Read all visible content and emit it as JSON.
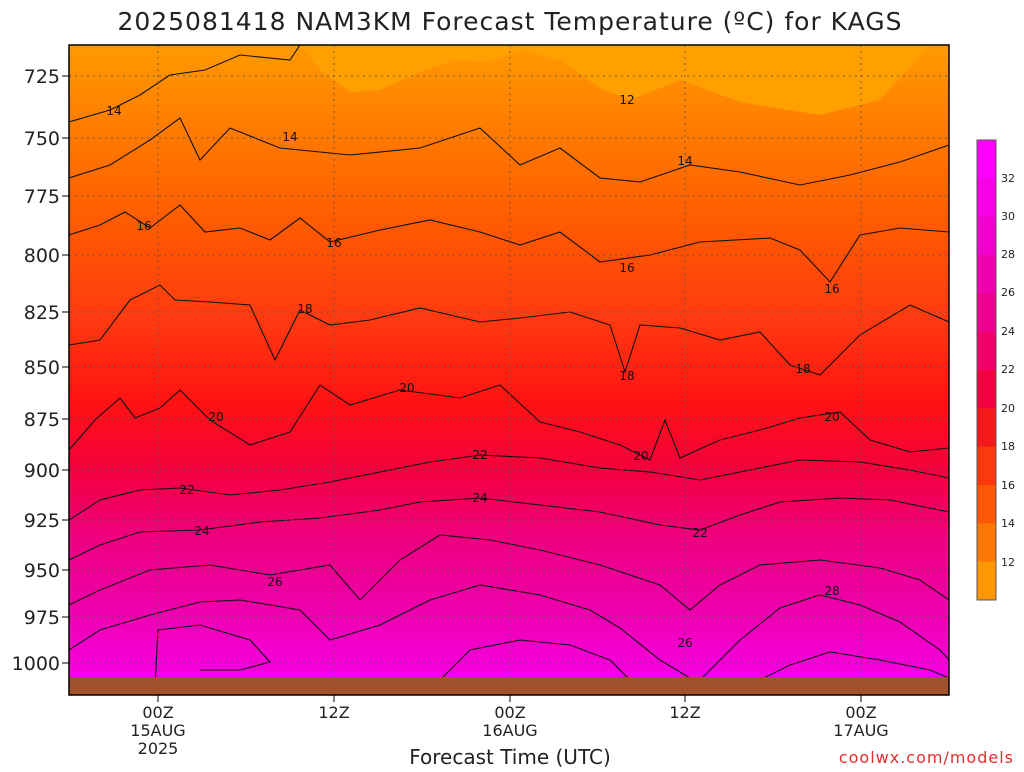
{
  "chart_data": {
    "type": "heatmap",
    "title": "2025081418 NAM3KM Forecast Temperature (ºC) for KAGS",
    "xlabel": "Forecast Time (UTC)",
    "ylabel": "",
    "credit": "coolwx.com/models",
    "y_axis": {
      "scale": "pressure (hPa), increasing downward",
      "ticks": [
        "725",
        "750",
        "775",
        "800",
        "825",
        "850",
        "875",
        "900",
        "925",
        "950",
        "975",
        "1000"
      ]
    },
    "x_axis": {
      "ticks": [
        {
          "label": "00Z",
          "date": "15AUG",
          "year": "2025"
        },
        {
          "label": "12Z",
          "date": "",
          "year": ""
        },
        {
          "label": "00Z",
          "date": "16AUG",
          "year": ""
        },
        {
          "label": "12Z",
          "date": "",
          "year": ""
        },
        {
          "label": "00Z",
          "date": "17AUG",
          "year": ""
        }
      ]
    },
    "grid": true,
    "colorbar": {
      "placement": "right",
      "labels": [
        "32",
        "30",
        "28",
        "26",
        "24",
        "22",
        "20",
        "18",
        "16",
        "14",
        "12"
      ],
      "colors_top_to_bottom": [
        "#ff00ff",
        "#f700e8",
        "#f200d0",
        "#ee00b0",
        "#ee0090",
        "#f00068",
        "#f20040",
        "#f51a1a",
        "#fa3a0a",
        "#fc5805",
        "#fc7804",
        "#fd9804"
      ]
    },
    "contour_labels": [
      {
        "value": "12"
      },
      {
        "value": "14"
      },
      {
        "value": "14"
      },
      {
        "value": "14"
      },
      {
        "value": "16"
      },
      {
        "value": "16"
      },
      {
        "value": "16"
      },
      {
        "value": "16"
      },
      {
        "value": "18"
      },
      {
        "value": "18"
      },
      {
        "value": "18"
      },
      {
        "value": "20"
      },
      {
        "value": "20"
      },
      {
        "value": "20"
      },
      {
        "value": "20"
      },
      {
        "value": "22"
      },
      {
        "value": "22"
      },
      {
        "value": "22"
      },
      {
        "value": "24"
      },
      {
        "value": "24"
      },
      {
        "value": "26"
      },
      {
        "value": "26"
      },
      {
        "value": "28"
      }
    ],
    "ground_color": "#a0522d",
    "credit_color": "#e03030"
  }
}
